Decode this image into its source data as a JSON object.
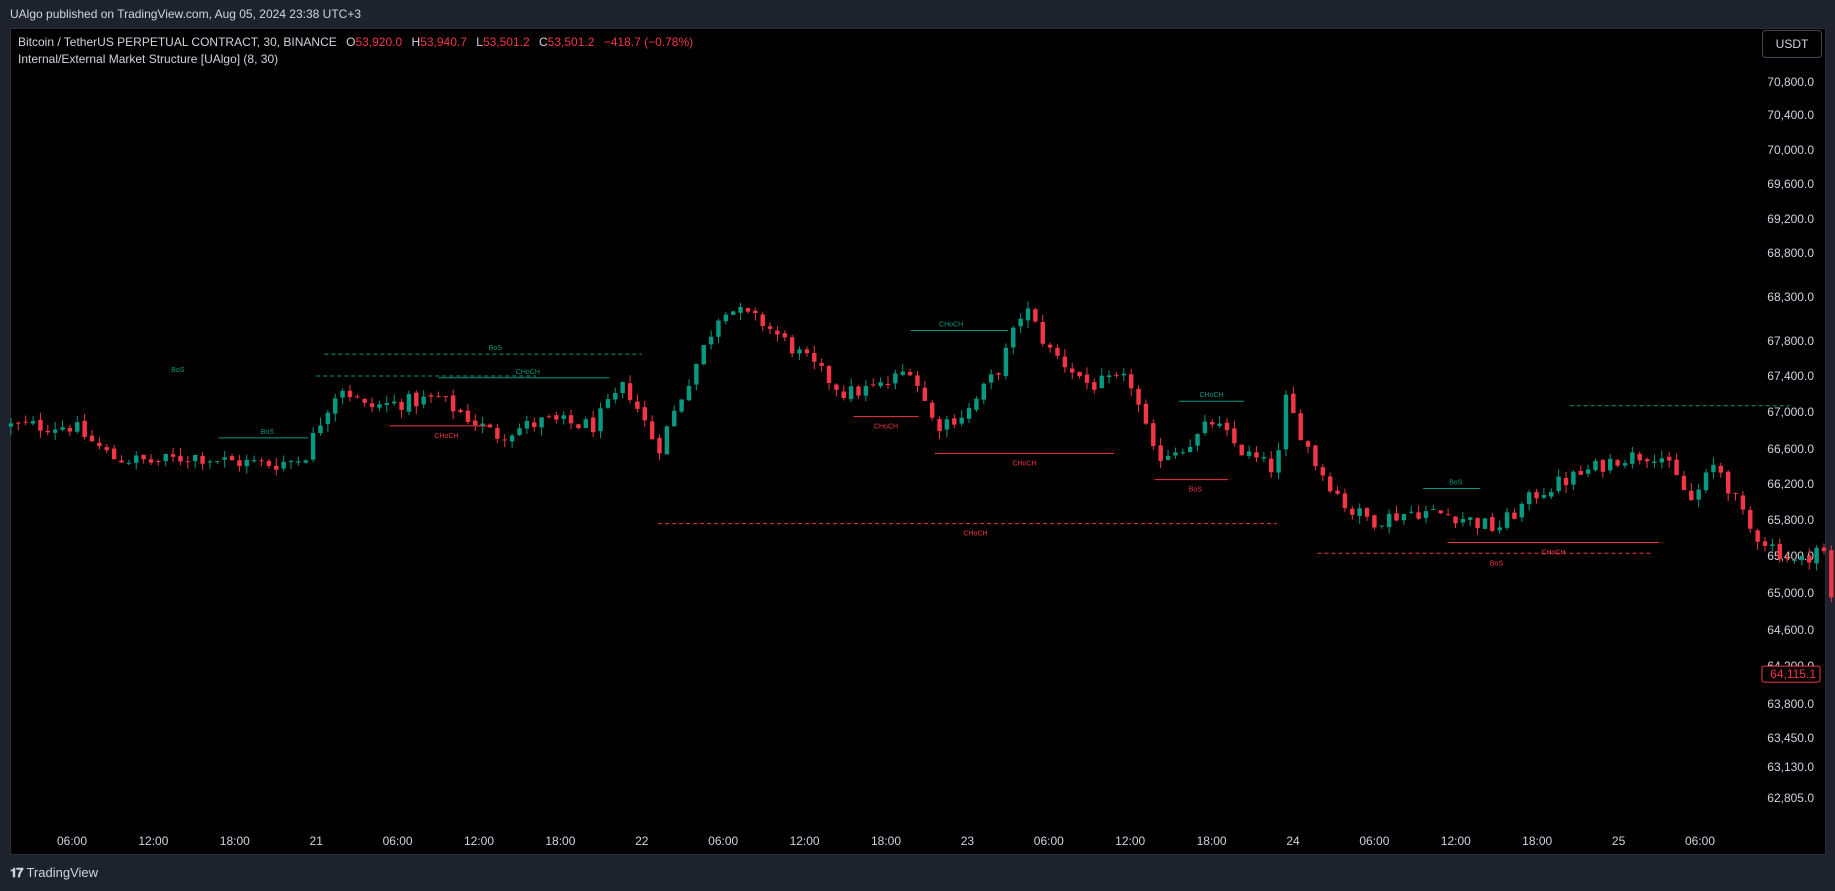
{
  "header": {
    "publisher": "UAlgo published on TradingView.com, Aug 05, 2024 23:38 UTC+3"
  },
  "legend": {
    "symbol": "Bitcoin / TetherUS PERPETUAL CONTRACT, 30, BINANCE",
    "o_label": "O",
    "o_value": "53,920.0",
    "h_label": "H",
    "h_value": "53,940.7",
    "l_label": "L",
    "l_value": "53,501.2",
    "c_label": "C",
    "c_value": "53,501.2",
    "change": "−418.7 (−0.78%)",
    "indicator": "Internal/External Market Structure [UAlgo] (8, 30)"
  },
  "currency_button": "USDT",
  "footer": {
    "logo_text": "𝟏𝟕",
    "brand": "TradingView"
  },
  "colors": {
    "up": "#089981",
    "down": "#f23645",
    "background": "#000000",
    "frame": "#1e222d",
    "text": "#d1d4dc"
  },
  "chart_data": {
    "type": "candlestick",
    "x_tick_labels": [
      "06:00",
      "12:00",
      "18:00",
      "21",
      "06:00",
      "12:00",
      "18:00",
      "22",
      "06:00",
      "12:00",
      "18:00",
      "23",
      "06:00",
      "12:00",
      "18:00",
      "24",
      "06:00",
      "12:00",
      "18:00",
      "25",
      "06:00"
    ],
    "y_tick_labels": [
      "70,800.0",
      "70,400.0",
      "70,000.0",
      "69,600.0",
      "69,200.0",
      "68,800.0",
      "68,300.0",
      "67,800.0",
      "67,400.0",
      "67,000.0",
      "66,600.0",
      "66,200.0",
      "65,800.0",
      "65,400.0",
      "65,000.0",
      "64,600.0",
      "64,200.0",
      "63,800.0",
      "63,450.0",
      "63,130.0",
      "62,805.0"
    ],
    "last_price_label": "64,115.1",
    "price_anchors": [
      {
        "x": 0.0,
        "y": 66850
      },
      {
        "x": 0.5,
        "y": 66500
      },
      {
        "x": 1.0,
        "y": 66450
      },
      {
        "x": 1.5,
        "y": 66520
      },
      {
        "x": 2.0,
        "y": 66450
      },
      {
        "x": 2.5,
        "y": 66430
      },
      {
        "x": 2.85,
        "y": 66500
      },
      {
        "x": 3.1,
        "y": 67000
      },
      {
        "x": 3.3,
        "y": 67300
      },
      {
        "x": 3.6,
        "y": 67050
      },
      {
        "x": 4.0,
        "y": 67100
      },
      {
        "x": 4.5,
        "y": 67150
      },
      {
        "x": 5.2,
        "y": 66750
      },
      {
        "x": 5.8,
        "y": 66900
      },
      {
        "x": 6.4,
        "y": 66850
      },
      {
        "x": 6.8,
        "y": 67300
      },
      {
        "x": 7.2,
        "y": 66600
      },
      {
        "x": 7.6,
        "y": 67400
      },
      {
        "x": 8.0,
        "y": 68200
      },
      {
        "x": 8.5,
        "y": 68000
      },
      {
        "x": 9.0,
        "y": 67600
      },
      {
        "x": 9.5,
        "y": 67200
      },
      {
        "x": 10.0,
        "y": 67300
      },
      {
        "x": 10.3,
        "y": 67500
      },
      {
        "x": 10.6,
        "y": 66850
      },
      {
        "x": 11.0,
        "y": 67000
      },
      {
        "x": 11.4,
        "y": 67500
      },
      {
        "x": 11.7,
        "y": 68200
      },
      {
        "x": 12.0,
        "y": 67700
      },
      {
        "x": 12.5,
        "y": 67300
      },
      {
        "x": 13.0,
        "y": 67350
      },
      {
        "x": 13.3,
        "y": 66500
      },
      {
        "x": 13.8,
        "y": 66700
      },
      {
        "x": 14.0,
        "y": 66900
      },
      {
        "x": 14.4,
        "y": 66550
      },
      {
        "x": 14.8,
        "y": 66350
      },
      {
        "x": 14.9,
        "y": 67150
      },
      {
        "x": 15.3,
        "y": 66400
      },
      {
        "x": 15.7,
        "y": 65900
      },
      {
        "x": 16.0,
        "y": 65800
      },
      {
        "x": 16.5,
        "y": 65900
      },
      {
        "x": 17.0,
        "y": 65850
      },
      {
        "x": 17.5,
        "y": 65700
      },
      {
        "x": 18.0,
        "y": 66100
      },
      {
        "x": 18.5,
        "y": 66300
      },
      {
        "x": 19.0,
        "y": 66500
      },
      {
        "x": 19.5,
        "y": 66550
      },
      {
        "x": 19.9,
        "y": 66000
      },
      {
        "x": 20.2,
        "y": 66450
      },
      {
        "x": 20.6,
        "y": 65700
      },
      {
        "x": 20.9,
        "y": 65500
      },
      {
        "x": 21.2,
        "y": 65300
      },
      {
        "x": 21.5,
        "y": 65550
      },
      {
        "x": 21.7,
        "y": 64450
      },
      {
        "x": 22.1,
        "y": 64100
      },
      {
        "x": 22.5,
        "y": 64100
      },
      {
        "x": 22.7,
        "y": 64115.1
      }
    ],
    "annotations": [
      {
        "label": "BoS",
        "x0": 3.0,
        "x1": 5.7,
        "y": 67400,
        "style": "dashed",
        "color": "#089981",
        "label_x": 1.3
      },
      {
        "label": "BoS",
        "x0": 1.8,
        "x1": 2.9,
        "y": 66720,
        "style": "solid",
        "color": "#089981",
        "label_x": 2.4
      },
      {
        "label": "BoS",
        "x0": 3.1,
        "x1": 7.0,
        "y": 67650,
        "style": "dashed",
        "color": "#089981",
        "label_x": 5.2
      },
      {
        "label": "CHoCH",
        "x0": 4.5,
        "x1": 6.6,
        "y": 67380,
        "style": "solid",
        "color": "#089981",
        "label_x": 5.6
      },
      {
        "label": "CHoCH",
        "x0": 3.9,
        "x1": 5.1,
        "y": 66850,
        "style": "solid",
        "color": "#f23645",
        "label_x": 4.6
      },
      {
        "label": "CHoCH",
        "x0": 7.2,
        "x1": 14.8,
        "y": 65760,
        "style": "dashed",
        "color": "#f23645",
        "label_x": 11.1
      },
      {
        "label": "CHoCH",
        "x0": 10.3,
        "x1": 11.5,
        "y": 67920,
        "style": "solid",
        "color": "#089981",
        "label_x": 10.8
      },
      {
        "label": "CHoCH",
        "x0": 9.6,
        "x1": 10.4,
        "y": 66950,
        "style": "solid",
        "color": "#f23645",
        "label_x": 10.0
      },
      {
        "label": "CHoCH",
        "x0": 10.6,
        "x1": 12.8,
        "y": 66550,
        "style": "solid",
        "color": "#f23645",
        "label_x": 11.7
      },
      {
        "label": "CHoCH",
        "x0": 13.6,
        "x1": 14.4,
        "y": 67120,
        "style": "solid",
        "color": "#089981",
        "label_x": 14.0
      },
      {
        "label": "BoS",
        "x0": 13.3,
        "x1": 14.2,
        "y": 66250,
        "style": "solid",
        "color": "#f23645",
        "label_x": 13.8
      },
      {
        "label": "BoS",
        "x0": 16.6,
        "x1": 17.3,
        "y": 66150,
        "style": "solid",
        "color": "#089981",
        "label_x": 17.0
      },
      {
        "label": "CHoCH",
        "x0": 16.9,
        "x1": 19.5,
        "y": 65550,
        "style": "solid",
        "color": "#f23645",
        "label_x": 18.2
      },
      {
        "label": "BoS",
        "x0": 15.3,
        "x1": 19.4,
        "y": 65430,
        "style": "dashed",
        "color": "#f23645",
        "label_x": 17.5
      },
      {
        "label": "",
        "x0": 18.4,
        "x1": 21.1,
        "y": 67070,
        "style": "dashed",
        "color": "#089981",
        "label_x": 0
      }
    ],
    "ylim": [
      62500,
      71200
    ],
    "grid": false
  }
}
